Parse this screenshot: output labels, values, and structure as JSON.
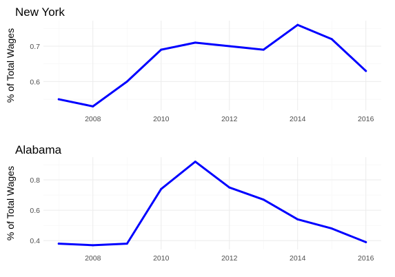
{
  "chart_data": [
    {
      "type": "line",
      "title": "New York",
      "xlabel": "",
      "ylabel": "% of Total Wages",
      "x": [
        2007,
        2008,
        2009,
        2010,
        2011,
        2012,
        2013,
        2014,
        2015,
        2016
      ],
      "series": [
        {
          "values": [
            0.55,
            0.53,
            0.6,
            0.69,
            0.71,
            0.7,
            0.69,
            0.76,
            0.72,
            0.63
          ],
          "color": "#0000ff"
        }
      ],
      "xticks": [
        "2008",
        "2010",
        "2012",
        "2014",
        "2016"
      ],
      "yticks": [
        "0.6",
        "0.7"
      ],
      "xlim": [
        2006.55,
        2016.45
      ],
      "ylim": [
        0.519,
        0.772
      ],
      "grid": true,
      "legend": "none"
    },
    {
      "type": "line",
      "title": "Alabama",
      "xlabel": "",
      "ylabel": "% of Total Wages",
      "x": [
        2007,
        2008,
        2009,
        2010,
        2011,
        2012,
        2013,
        2014,
        2015,
        2016
      ],
      "series": [
        {
          "values": [
            0.38,
            0.37,
            0.38,
            0.74,
            0.92,
            0.75,
            0.67,
            0.54,
            0.48,
            0.39
          ],
          "color": "#0000ff"
        }
      ],
      "xticks": [
        "2008",
        "2010",
        "2012",
        "2014",
        "2016"
      ],
      "yticks": [
        "0.4",
        "0.6",
        "0.8"
      ],
      "xlim": [
        2006.55,
        2016.45
      ],
      "ylim": [
        0.342,
        0.95
      ],
      "grid": true,
      "legend": "none"
    }
  ]
}
